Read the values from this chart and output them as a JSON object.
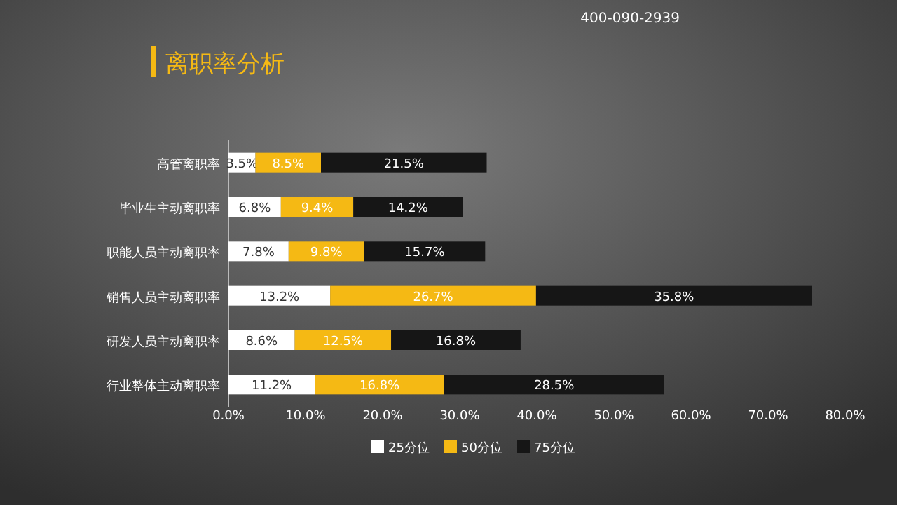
{
  "chart_data": {
    "type": "bar",
    "orientation": "horizontal",
    "stacked": true,
    "title": "离职率分析",
    "categories": [
      "高管离职率",
      "毕业生主动离职率",
      "职能人员主动离职率",
      "销售人员主动离职率",
      "研发人员主动离职率",
      "行业整体主动离职率"
    ],
    "series": [
      {
        "name": "25分位",
        "color": "#ffffff",
        "values": [
          3.5,
          6.8,
          7.8,
          13.2,
          8.6,
          11.2
        ],
        "value_labels": [
          "3.5%",
          "6.8%",
          "7.8%",
          "13.2%",
          "8.6%",
          "11.2%"
        ]
      },
      {
        "name": "50分位",
        "color": "#f5b914",
        "values": [
          8.5,
          9.4,
          9.8,
          26.7,
          12.5,
          16.8
        ],
        "value_labels": [
          "8.5%",
          "9.4%",
          "9.8%",
          "26.7%",
          "12.5%",
          "16.8%"
        ]
      },
      {
        "name": "75分位",
        "color": "#161616",
        "values": [
          21.5,
          14.2,
          15.7,
          35.8,
          16.8,
          28.5
        ],
        "value_labels": [
          "21.5%",
          "14.2%",
          "15.7%",
          "35.8%",
          "16.8%",
          "28.5%"
        ]
      }
    ],
    "xlim": [
      0,
      80
    ],
    "xticks": [
      {
        "value": 0,
        "label": "0.0%"
      },
      {
        "value": 10,
        "label": "10.0%"
      },
      {
        "value": 20,
        "label": "20.0%"
      },
      {
        "value": 30,
        "label": "30.0%"
      },
      {
        "value": 40,
        "label": "40.0%"
      },
      {
        "value": 50,
        "label": "50.0%"
      },
      {
        "value": 60,
        "label": "60.0%"
      },
      {
        "value": 70,
        "label": "70.0%"
      },
      {
        "value": 80,
        "label": "80.0%"
      }
    ],
    "grid": false,
    "legend": "bottom",
    "annotations": [
      "400-090-2939"
    ]
  }
}
